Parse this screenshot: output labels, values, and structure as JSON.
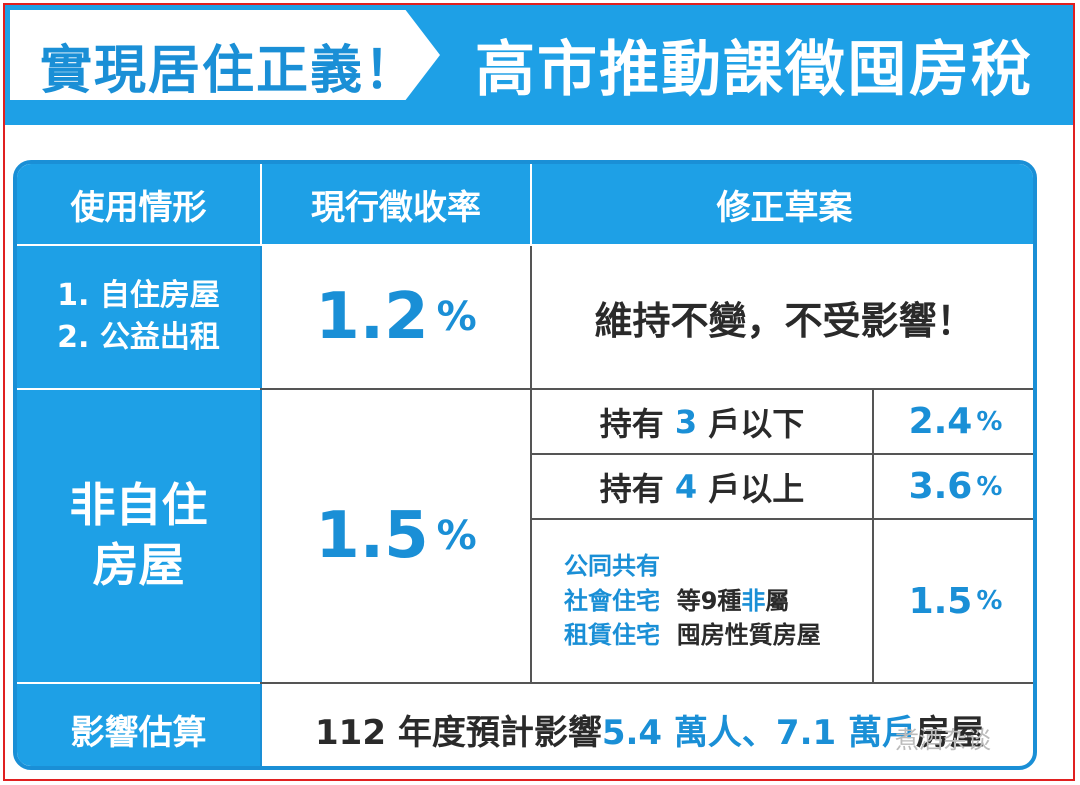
{
  "header": {
    "left_title": "實現居住正義！",
    "right_title": "高市推動課徵囤房稅"
  },
  "table": {
    "col_headers": [
      "使用情形",
      "現行徵收率",
      "修正草案"
    ],
    "row1": {
      "usage_line1": "1. 自住房屋",
      "usage_line2": "2. 公益出租",
      "current_num": "1.2",
      "current_sign": "%",
      "proposal": "維持不變，不受影響！"
    },
    "row2": {
      "usage_line1": "非自住",
      "usage_line2": "房屋",
      "current_num": "1.5",
      "current_sign": "%",
      "sub1": {
        "pre": "持有",
        "n": "3",
        "post": "戶以下",
        "num": "2.4",
        "sign": "%"
      },
      "sub2": {
        "pre": "持有",
        "n": "4",
        "post": "戶以上",
        "num": "3.6",
        "sign": "%"
      },
      "sub3": {
        "line1": "公同共有",
        "line2a": "社會住宅",
        "line2b": "等9種",
        "line2c": "非",
        "line2d": "屬",
        "line3a": "租賃住宅",
        "line3b": "囤房性質房屋",
        "num": "1.5",
        "sign": "%"
      }
    },
    "row3": {
      "label": "影響估算",
      "t1": "112 年度預計影響 ",
      "t2": "5.4 萬人",
      "t3": "、",
      "t4": "7.1 萬戶",
      "t5": "房屋"
    }
  },
  "watermark": "煮酒杂谈",
  "colors": {
    "accent": "#1ea0e6",
    "accent_dark": "#1a8fd6",
    "frame": "#e02020"
  }
}
